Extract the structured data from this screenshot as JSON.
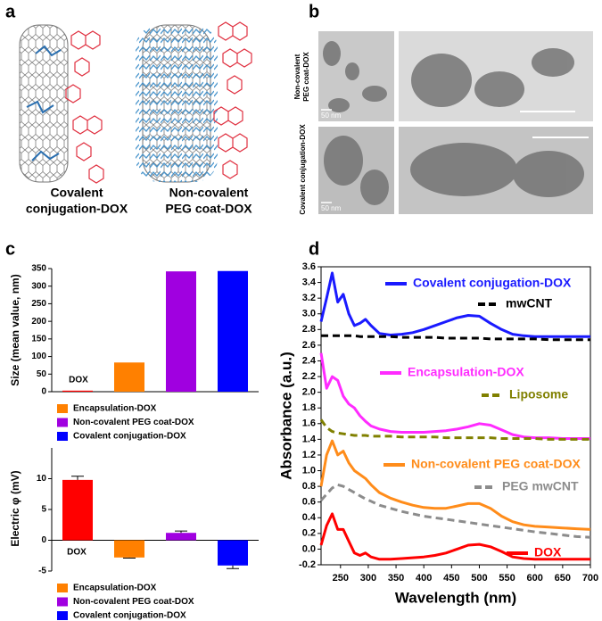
{
  "figure": {
    "panel_labels": [
      "a",
      "b",
      "c",
      "d"
    ],
    "panel_a": {
      "captions": [
        [
          "Covalent",
          "conjugation-DOX"
        ],
        [
          "Non-covalent",
          "PEG coat-DOX"
        ]
      ]
    },
    "panel_b": {
      "row_labels": [
        [
          "Non-covalent",
          "PEG coat-DOX"
        ],
        [
          "Covalent conjugation-DOX"
        ]
      ],
      "scale_labels": [
        "50 nm",
        "50 nm"
      ]
    }
  },
  "chart_data": [
    {
      "type": "bar",
      "y_label": "Size (mean value, nm)",
      "categories": [
        "DOX",
        "Encapsulation-DOX",
        "Non-covalent PEG coat-DOX",
        "Covalent conjugation-DOX"
      ],
      "values": [
        3,
        83,
        342,
        343
      ],
      "colors": [
        "#ff0000",
        "#ff8000",
        "#a000e0",
        "#0000ff"
      ],
      "ylim": [
        0,
        350
      ],
      "yticks": [
        0,
        50,
        100,
        150,
        200,
        250,
        300,
        350
      ],
      "legend": true
    },
    {
      "type": "bar",
      "y_label": "Electric φ (mV)",
      "categories": [
        "DOX",
        "Encapsulation-DOX",
        "Non-covalent PEG coat-DOX",
        "Covalent conjugation-DOX"
      ],
      "values": [
        9.8,
        -2.8,
        1.2,
        -4.1
      ],
      "errors": [
        0.6,
        0.1,
        0.3,
        0.5
      ],
      "colors": [
        "#ff0000",
        "#ff8000",
        "#a000e0",
        "#0000ff"
      ],
      "ylim": [
        -5,
        15
      ],
      "yticks": [
        -5,
        0,
        5,
        10
      ],
      "legend": true
    },
    {
      "type": "line",
      "x_label": "Wavelength (nm)",
      "y_label": "Absorbance (a.u.)",
      "x": [
        215,
        225,
        235,
        245,
        255,
        265,
        275,
        285,
        295,
        305,
        320,
        340,
        360,
        380,
        400,
        420,
        440,
        460,
        480,
        500,
        520,
        540,
        560,
        580,
        600,
        625,
        650,
        675,
        700
      ],
      "xlim": [
        215,
        700
      ],
      "xticks": [
        250,
        300,
        350,
        400,
        450,
        500,
        550,
        600,
        650,
        700
      ],
      "ylim": [
        -0.2,
        3.6
      ],
      "yticks": [
        -0.2,
        {
          "value": 0,
          "label": "0.0"
        },
        0.2,
        0.4,
        0.6,
        0.8,
        {
          "value": 1,
          "label": "1.0"
        },
        1.2,
        1.4,
        1.6,
        1.8,
        {
          "value": 2,
          "label": "2.0"
        },
        2.2,
        2.4,
        2.6,
        2.8,
        {
          "value": 3,
          "label": "3.0"
        },
        3.2,
        3.4,
        3.6
      ],
      "series": [
        {
          "name": "Covalent conjugation-DOX",
          "color": "#1a1aff",
          "dashed": false,
          "values": [
            2.9,
            3.2,
            3.52,
            3.15,
            3.25,
            3.0,
            2.85,
            2.88,
            2.93,
            2.85,
            2.75,
            2.73,
            2.74,
            2.76,
            2.8,
            2.85,
            2.9,
            2.95,
            2.98,
            2.97,
            2.88,
            2.8,
            2.74,
            2.72,
            2.71,
            2.71,
            2.71,
            2.71,
            2.71
          ]
        },
        {
          "name": "mwCNT",
          "color": "#000000",
          "dashed": true,
          "values": [
            2.72,
            2.72,
            2.72,
            2.72,
            2.72,
            2.72,
            2.72,
            2.71,
            2.71,
            2.71,
            2.71,
            2.71,
            2.7,
            2.7,
            2.7,
            2.7,
            2.69,
            2.69,
            2.69,
            2.69,
            2.68,
            2.68,
            2.68,
            2.68,
            2.68,
            2.67,
            2.67,
            2.67,
            2.67
          ]
        },
        {
          "name": "Encapsulation-DOX",
          "color": "#ff2bff",
          "dashed": false,
          "values": [
            2.5,
            2.05,
            2.2,
            2.15,
            1.95,
            1.85,
            1.8,
            1.7,
            1.63,
            1.57,
            1.53,
            1.5,
            1.49,
            1.49,
            1.49,
            1.5,
            1.51,
            1.53,
            1.56,
            1.6,
            1.58,
            1.52,
            1.46,
            1.43,
            1.42,
            1.42,
            1.41,
            1.41,
            1.41
          ]
        },
        {
          "name": "Liposome",
          "color": "#808000",
          "dashed": true,
          "values": [
            1.65,
            1.55,
            1.5,
            1.48,
            1.47,
            1.46,
            1.45,
            1.45,
            1.45,
            1.44,
            1.44,
            1.44,
            1.43,
            1.43,
            1.43,
            1.43,
            1.42,
            1.42,
            1.42,
            1.42,
            1.42,
            1.41,
            1.41,
            1.41,
            1.41,
            1.4,
            1.4,
            1.4,
            1.4
          ]
        },
        {
          "name": "Non-covalent PEG coat-DOX",
          "color": "#ff8c1a",
          "dashed": false,
          "values": [
            0.8,
            1.2,
            1.38,
            1.2,
            1.25,
            1.1,
            1.0,
            0.95,
            0.9,
            0.82,
            0.72,
            0.65,
            0.6,
            0.56,
            0.53,
            0.52,
            0.52,
            0.55,
            0.58,
            0.58,
            0.52,
            0.42,
            0.35,
            0.31,
            0.29,
            0.28,
            0.27,
            0.26,
            0.25
          ]
        },
        {
          "name": "PEG mwCNT",
          "color": "#8c8c8c",
          "dashed": true,
          "values": [
            0.62,
            0.7,
            0.78,
            0.82,
            0.8,
            0.76,
            0.72,
            0.68,
            0.64,
            0.61,
            0.56,
            0.52,
            0.48,
            0.45,
            0.42,
            0.4,
            0.38,
            0.36,
            0.34,
            0.32,
            0.3,
            0.28,
            0.26,
            0.24,
            0.22,
            0.2,
            0.18,
            0.16,
            0.15
          ]
        },
        {
          "name": "DOX",
          "color": "#ff0000",
          "dashed": false,
          "values": [
            0.05,
            0.3,
            0.45,
            0.25,
            0.25,
            0.1,
            -0.05,
            -0.08,
            -0.05,
            -0.1,
            -0.13,
            -0.13,
            -0.12,
            -0.11,
            -0.1,
            -0.08,
            -0.05,
            0.0,
            0.05,
            0.06,
            0.03,
            -0.03,
            -0.1,
            -0.12,
            -0.13,
            -0.13,
            -0.13,
            -0.13,
            -0.13
          ]
        }
      ]
    }
  ]
}
